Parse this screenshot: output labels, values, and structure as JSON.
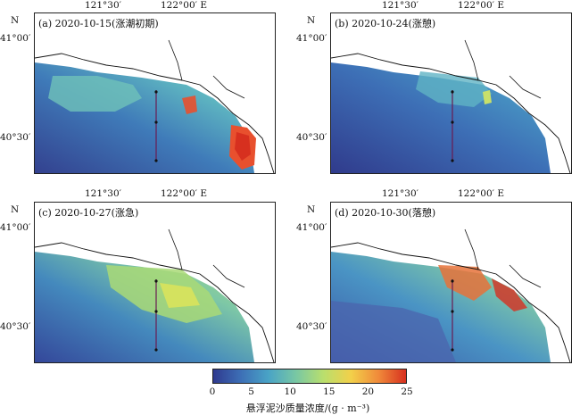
{
  "figure": {
    "panels": [
      {
        "label": "(a) 2020-10-15(涨潮初期)",
        "scene": "a"
      },
      {
        "label": "(b) 2020-10-24(涨憩)",
        "scene": "b"
      },
      {
        "label": "(c) 2020-10-27(涨急)",
        "scene": "c"
      },
      {
        "label": "(d) 2020-10-30(落憩)",
        "scene": "d"
      }
    ],
    "lon_ticks": [
      "121°30′",
      "122°00′ E"
    ],
    "lat_ticks": [
      "41°00′",
      "40°30′"
    ],
    "north_label": "N",
    "colorbar": {
      "ticks": [
        "0",
        "5",
        "10",
        "15",
        "20",
        "25"
      ],
      "min": 0,
      "max": 25,
      "title": "悬浮泥沙质量浓度/(g · m⁻³)",
      "colors": [
        "#2f3a8f",
        "#3d6fb6",
        "#49a3c6",
        "#78c7a4",
        "#b9df6d",
        "#f2d04a",
        "#f08a3a",
        "#d7301f"
      ]
    }
  }
}
